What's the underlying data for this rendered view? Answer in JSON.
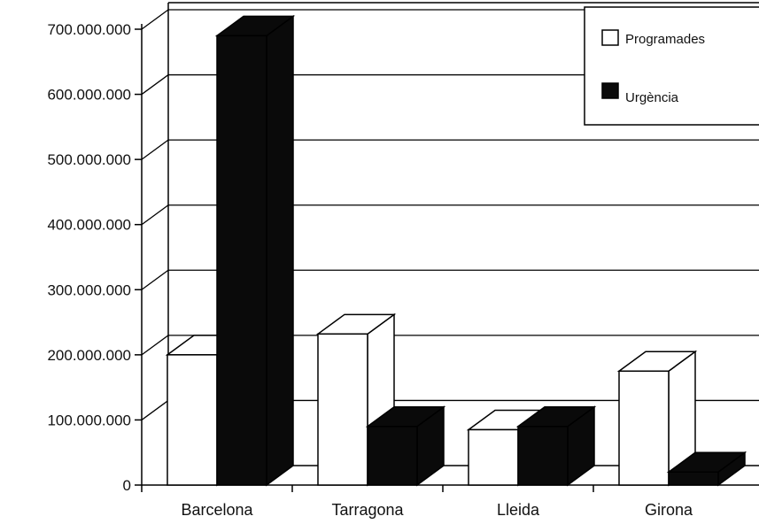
{
  "chart_data": {
    "type": "bar",
    "style": "3d-clustered",
    "categories": [
      "Barcelona",
      "Tarragona",
      "Lleida",
      "Girona"
    ],
    "series": [
      {
        "name": "Programades",
        "values": [
          200000000,
          232000000,
          85000000,
          175000000
        ],
        "color": "#ffffff"
      },
      {
        "name": "Urgència",
        "values": [
          690000000,
          90000000,
          90000000,
          20000000
        ],
        "color": "#0a0a0a"
      }
    ],
    "ylim": [
      0,
      700000000
    ],
    "ytick_labels": [
      "0",
      "100.000.000",
      "200.000.000",
      "300.000.000",
      "400.000.000",
      "500.000.000",
      "600.000.000",
      "700.000.000"
    ],
    "grid": true,
    "legend_position": "top-right",
    "title": "",
    "xlabel": "",
    "ylabel": ""
  }
}
